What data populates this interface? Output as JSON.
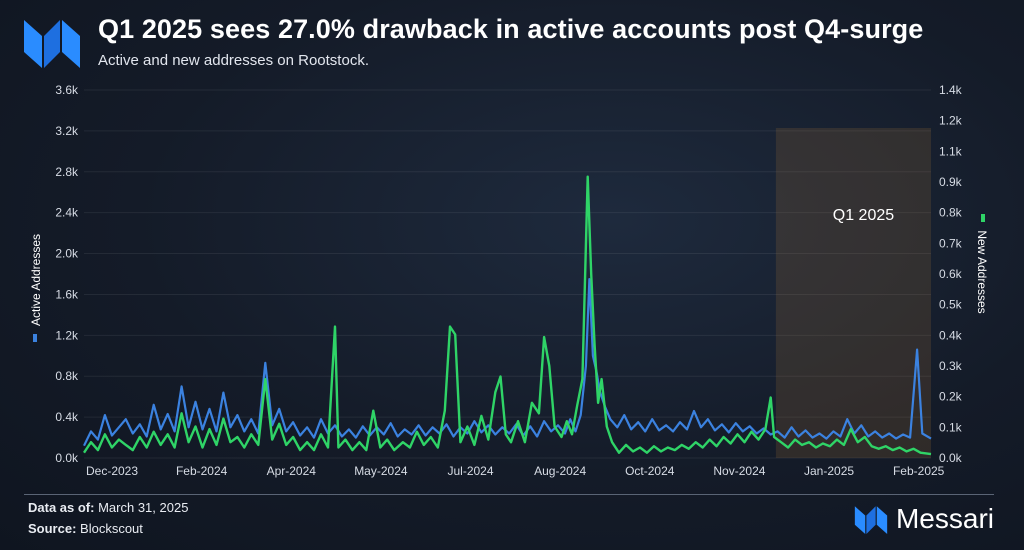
{
  "header": {
    "title": "Q1 2025 sees 27.0% drawback in active accounts post Q4-surge",
    "subtitle": "Active and new addresses on Rootstock."
  },
  "footer": {
    "data_as_of_label": "Data as of:",
    "data_as_of_value": "March 31, 2025",
    "source_label": "Source:",
    "source_value": "Blockscout",
    "brand": "Messari"
  },
  "colors": {
    "active": "#3b82e0",
    "new": "#2fd467",
    "highlight": "#b07a3a"
  },
  "icons": {
    "logo": "messari-logo-icon"
  },
  "chart_data": {
    "type": "line",
    "x_start": "2023-12-01",
    "x_end": "2025-03-31",
    "xticks": [
      "Dec-2023",
      "Feb-2024",
      "Apr-2024",
      "May-2024",
      "Jul-2024",
      "Aug-2024",
      "Oct-2024",
      "Nov-2024",
      "Jan-2025",
      "Feb-2025"
    ],
    "y_left": {
      "label": "Active Addresses",
      "ticks": [
        "0.0k",
        "0.4k",
        "0.8k",
        "1.2k",
        "1.6k",
        "2.0k",
        "2.4k",
        "2.8k",
        "3.2k",
        "3.6k"
      ],
      "range": [
        0,
        3600
      ]
    },
    "y_right": {
      "label": "New Addresses",
      "ticks": [
        "0.0k",
        "0.1k",
        "0.2k",
        "0.3k",
        "0.4k",
        "0.5k",
        "0.6k",
        "0.7k",
        "0.8k",
        "0.9k",
        "1.1k",
        "1.2k",
        "1.4k"
      ],
      "range": [
        0,
        1400
      ]
    },
    "highlight": {
      "label": "Q1 2025",
      "from": "2025-01-01",
      "to": "2025-03-31"
    },
    "series": [
      {
        "name": "Active Addresses",
        "axis": "left",
        "points": [
          [
            "2023-12-01",
            120
          ],
          [
            "2023-12-05",
            260
          ],
          [
            "2023-12-09",
            180
          ],
          [
            "2023-12-13",
            420
          ],
          [
            "2023-12-17",
            220
          ],
          [
            "2023-12-21",
            300
          ],
          [
            "2023-12-25",
            380
          ],
          [
            "2023-12-29",
            240
          ],
          [
            "2024-01-02",
            330
          ],
          [
            "2024-01-06",
            210
          ],
          [
            "2024-01-10",
            520
          ],
          [
            "2024-01-14",
            280
          ],
          [
            "2024-01-18",
            430
          ],
          [
            "2024-01-22",
            260
          ],
          [
            "2024-01-26",
            700
          ],
          [
            "2024-01-30",
            300
          ],
          [
            "2024-02-03",
            550
          ],
          [
            "2024-02-07",
            280
          ],
          [
            "2024-02-11",
            480
          ],
          [
            "2024-02-15",
            260
          ],
          [
            "2024-02-19",
            640
          ],
          [
            "2024-02-23",
            300
          ],
          [
            "2024-02-27",
            420
          ],
          [
            "2024-03-02",
            260
          ],
          [
            "2024-03-06",
            380
          ],
          [
            "2024-03-10",
            240
          ],
          [
            "2024-03-14",
            930
          ],
          [
            "2024-03-18",
            320
          ],
          [
            "2024-03-22",
            480
          ],
          [
            "2024-03-26",
            260
          ],
          [
            "2024-03-30",
            350
          ],
          [
            "2024-04-03",
            220
          ],
          [
            "2024-04-07",
            300
          ],
          [
            "2024-04-11",
            200
          ],
          [
            "2024-04-15",
            380
          ],
          [
            "2024-04-19",
            240
          ],
          [
            "2024-04-23",
            320
          ],
          [
            "2024-04-27",
            210
          ],
          [
            "2024-05-01",
            280
          ],
          [
            "2024-05-05",
            200
          ],
          [
            "2024-05-09",
            310
          ],
          [
            "2024-05-13",
            220
          ],
          [
            "2024-05-17",
            300
          ],
          [
            "2024-05-21",
            230
          ],
          [
            "2024-05-25",
            340
          ],
          [
            "2024-05-29",
            210
          ],
          [
            "2024-06-02",
            280
          ],
          [
            "2024-06-06",
            230
          ],
          [
            "2024-06-10",
            320
          ],
          [
            "2024-06-14",
            220
          ],
          [
            "2024-06-18",
            300
          ],
          [
            "2024-06-22",
            240
          ],
          [
            "2024-06-26",
            330
          ],
          [
            "2024-06-30",
            210
          ],
          [
            "2024-07-04",
            300
          ],
          [
            "2024-07-08",
            240
          ],
          [
            "2024-07-12",
            360
          ],
          [
            "2024-07-16",
            250
          ],
          [
            "2024-07-20",
            320
          ],
          [
            "2024-07-24",
            230
          ],
          [
            "2024-07-28",
            300
          ],
          [
            "2024-08-01",
            240
          ],
          [
            "2024-08-05",
            330
          ],
          [
            "2024-08-09",
            220
          ],
          [
            "2024-08-13",
            310
          ],
          [
            "2024-08-17",
            210
          ],
          [
            "2024-08-21",
            360
          ],
          [
            "2024-08-25",
            260
          ],
          [
            "2024-08-29",
            320
          ],
          [
            "2024-09-02",
            240
          ],
          [
            "2024-09-05",
            380
          ],
          [
            "2024-09-08",
            260
          ],
          [
            "2024-09-11",
            420
          ],
          [
            "2024-09-14",
            900
          ],
          [
            "2024-09-16",
            1750
          ],
          [
            "2024-09-18",
            1000
          ],
          [
            "2024-09-20",
            850
          ],
          [
            "2024-09-22",
            650
          ],
          [
            "2024-09-25",
            500
          ],
          [
            "2024-09-28",
            380
          ],
          [
            "2024-10-02",
            300
          ],
          [
            "2024-10-06",
            420
          ],
          [
            "2024-10-10",
            280
          ],
          [
            "2024-10-14",
            350
          ],
          [
            "2024-10-18",
            260
          ],
          [
            "2024-10-22",
            380
          ],
          [
            "2024-10-26",
            270
          ],
          [
            "2024-10-30",
            320
          ],
          [
            "2024-11-03",
            260
          ],
          [
            "2024-11-07",
            350
          ],
          [
            "2024-11-11",
            280
          ],
          [
            "2024-11-15",
            460
          ],
          [
            "2024-11-19",
            300
          ],
          [
            "2024-11-23",
            380
          ],
          [
            "2024-11-27",
            270
          ],
          [
            "2024-12-01",
            330
          ],
          [
            "2024-12-05",
            250
          ],
          [
            "2024-12-09",
            340
          ],
          [
            "2024-12-13",
            260
          ],
          [
            "2024-12-17",
            310
          ],
          [
            "2024-12-21",
            240
          ],
          [
            "2024-12-25",
            290
          ],
          [
            "2024-12-29",
            230
          ],
          [
            "2025-01-02",
            260
          ],
          [
            "2025-01-06",
            200
          ],
          [
            "2025-01-10",
            300
          ],
          [
            "2025-01-14",
            210
          ],
          [
            "2025-01-18",
            270
          ],
          [
            "2025-01-22",
            200
          ],
          [
            "2025-01-26",
            240
          ],
          [
            "2025-01-30",
            190
          ],
          [
            "2025-02-03",
            260
          ],
          [
            "2025-02-07",
            210
          ],
          [
            "2025-02-11",
            380
          ],
          [
            "2025-02-15",
            240
          ],
          [
            "2025-02-19",
            320
          ],
          [
            "2025-02-23",
            210
          ],
          [
            "2025-02-27",
            260
          ],
          [
            "2025-03-03",
            200
          ],
          [
            "2025-03-07",
            240
          ],
          [
            "2025-03-11",
            190
          ],
          [
            "2025-03-15",
            230
          ],
          [
            "2025-03-19",
            200
          ],
          [
            "2025-03-23",
            1060
          ],
          [
            "2025-03-26",
            240
          ],
          [
            "2025-03-31",
            190
          ]
        ]
      },
      {
        "name": "New Addresses",
        "axis": "right",
        "points": [
          [
            "2023-12-01",
            20
          ],
          [
            "2023-12-05",
            60
          ],
          [
            "2023-12-09",
            30
          ],
          [
            "2023-12-13",
            90
          ],
          [
            "2023-12-17",
            40
          ],
          [
            "2023-12-21",
            70
          ],
          [
            "2023-12-25",
            50
          ],
          [
            "2023-12-29",
            30
          ],
          [
            "2024-01-02",
            80
          ],
          [
            "2024-01-06",
            40
          ],
          [
            "2024-01-10",
            100
          ],
          [
            "2024-01-14",
            50
          ],
          [
            "2024-01-18",
            90
          ],
          [
            "2024-01-22",
            40
          ],
          [
            "2024-01-26",
            170
          ],
          [
            "2024-01-30",
            60
          ],
          [
            "2024-02-03",
            120
          ],
          [
            "2024-02-07",
            40
          ],
          [
            "2024-02-11",
            110
          ],
          [
            "2024-02-15",
            50
          ],
          [
            "2024-02-19",
            150
          ],
          [
            "2024-02-23",
            60
          ],
          [
            "2024-02-27",
            80
          ],
          [
            "2024-03-02",
            40
          ],
          [
            "2024-03-06",
            90
          ],
          [
            "2024-03-10",
            50
          ],
          [
            "2024-03-14",
            300
          ],
          [
            "2024-03-18",
            70
          ],
          [
            "2024-03-22",
            130
          ],
          [
            "2024-03-26",
            50
          ],
          [
            "2024-03-30",
            80
          ],
          [
            "2024-04-03",
            30
          ],
          [
            "2024-04-07",
            60
          ],
          [
            "2024-04-11",
            30
          ],
          [
            "2024-04-15",
            90
          ],
          [
            "2024-04-19",
            40
          ],
          [
            "2024-04-23",
            500
          ],
          [
            "2024-04-25",
            40
          ],
          [
            "2024-04-29",
            70
          ],
          [
            "2024-05-03",
            30
          ],
          [
            "2024-05-07",
            60
          ],
          [
            "2024-05-11",
            30
          ],
          [
            "2024-05-15",
            180
          ],
          [
            "2024-05-19",
            40
          ],
          [
            "2024-05-23",
            70
          ],
          [
            "2024-05-27",
            30
          ],
          [
            "2024-06-01",
            60
          ],
          [
            "2024-06-05",
            40
          ],
          [
            "2024-06-09",
            100
          ],
          [
            "2024-06-13",
            50
          ],
          [
            "2024-06-17",
            80
          ],
          [
            "2024-06-21",
            40
          ],
          [
            "2024-06-25",
            180
          ],
          [
            "2024-06-28",
            500
          ],
          [
            "2024-07-01",
            470
          ],
          [
            "2024-07-04",
            60
          ],
          [
            "2024-07-08",
            120
          ],
          [
            "2024-07-12",
            50
          ],
          [
            "2024-07-16",
            160
          ],
          [
            "2024-07-20",
            70
          ],
          [
            "2024-07-24",
            250
          ],
          [
            "2024-07-27",
            310
          ],
          [
            "2024-07-30",
            90
          ],
          [
            "2024-08-02",
            60
          ],
          [
            "2024-08-06",
            140
          ],
          [
            "2024-08-10",
            60
          ],
          [
            "2024-08-14",
            210
          ],
          [
            "2024-08-18",
            170
          ],
          [
            "2024-08-21",
            460
          ],
          [
            "2024-08-24",
            350
          ],
          [
            "2024-08-27",
            120
          ],
          [
            "2024-08-31",
            80
          ],
          [
            "2024-09-03",
            140
          ],
          [
            "2024-09-06",
            90
          ],
          [
            "2024-09-09",
            200
          ],
          [
            "2024-09-12",
            300
          ],
          [
            "2024-09-15",
            1070
          ],
          [
            "2024-09-17",
            700
          ],
          [
            "2024-09-19",
            430
          ],
          [
            "2024-09-21",
            210
          ],
          [
            "2024-09-23",
            300
          ],
          [
            "2024-09-26",
            120
          ],
          [
            "2024-09-29",
            60
          ],
          [
            "2024-10-03",
            20
          ],
          [
            "2024-10-07",
            50
          ],
          [
            "2024-10-11",
            25
          ],
          [
            "2024-10-15",
            40
          ],
          [
            "2024-10-19",
            20
          ],
          [
            "2024-10-23",
            45
          ],
          [
            "2024-10-27",
            25
          ],
          [
            "2024-10-31",
            40
          ],
          [
            "2024-11-04",
            30
          ],
          [
            "2024-11-08",
            50
          ],
          [
            "2024-11-12",
            35
          ],
          [
            "2024-11-16",
            60
          ],
          [
            "2024-11-20",
            40
          ],
          [
            "2024-11-24",
            70
          ],
          [
            "2024-11-28",
            45
          ],
          [
            "2024-12-02",
            80
          ],
          [
            "2024-12-06",
            55
          ],
          [
            "2024-12-10",
            90
          ],
          [
            "2024-12-14",
            60
          ],
          [
            "2024-12-18",
            100
          ],
          [
            "2024-12-22",
            70
          ],
          [
            "2024-12-26",
            110
          ],
          [
            "2024-12-29",
            230
          ],
          [
            "2024-12-31",
            80
          ],
          [
            "2025-01-04",
            60
          ],
          [
            "2025-01-08",
            40
          ],
          [
            "2025-01-12",
            70
          ],
          [
            "2025-01-16",
            50
          ],
          [
            "2025-01-20",
            60
          ],
          [
            "2025-01-24",
            40
          ],
          [
            "2025-01-28",
            55
          ],
          [
            "2025-02-01",
            45
          ],
          [
            "2025-02-05",
            70
          ],
          [
            "2025-02-09",
            50
          ],
          [
            "2025-02-13",
            110
          ],
          [
            "2025-02-17",
            60
          ],
          [
            "2025-02-21",
            80
          ],
          [
            "2025-02-25",
            45
          ],
          [
            "2025-03-01",
            35
          ],
          [
            "2025-03-05",
            45
          ],
          [
            "2025-03-09",
            30
          ],
          [
            "2025-03-13",
            40
          ],
          [
            "2025-03-17",
            25
          ],
          [
            "2025-03-21",
            35
          ],
          [
            "2025-03-25",
            20
          ],
          [
            "2025-03-31",
            15
          ]
        ]
      }
    ]
  }
}
